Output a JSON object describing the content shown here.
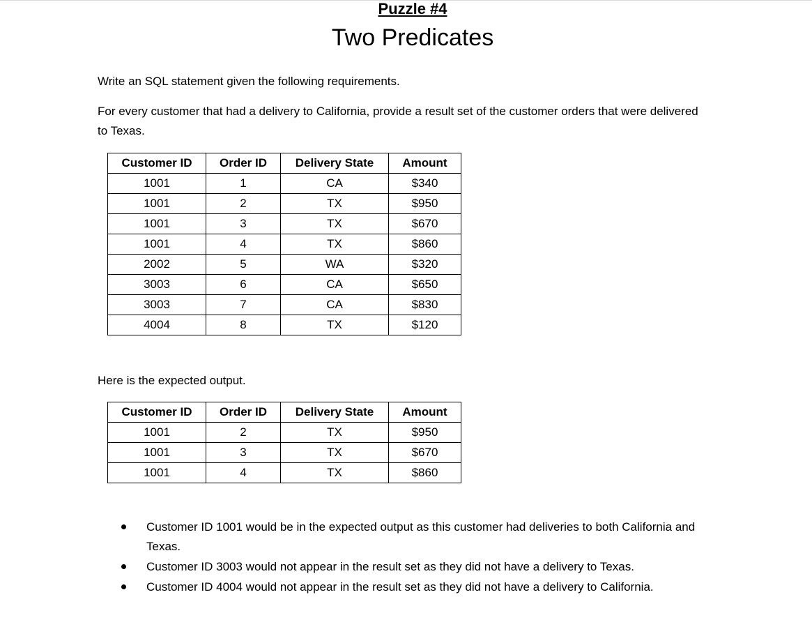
{
  "header": {
    "puzzle_label": "Puzzle #4",
    "title": "Two Predicates"
  },
  "intro": {
    "line1": "Write an SQL statement given the following requirements.",
    "line2": "For every customer that had a delivery to California, provide a result set of the customer orders that were delivered to Texas."
  },
  "source_table": {
    "columns": [
      "Customer ID",
      "Order ID",
      "Delivery State",
      "Amount"
    ],
    "rows": [
      [
        "1001",
        "1",
        "CA",
        "$340"
      ],
      [
        "1001",
        "2",
        "TX",
        "$950"
      ],
      [
        "1001",
        "3",
        "TX",
        "$670"
      ],
      [
        "1001",
        "4",
        "TX",
        "$860"
      ],
      [
        "2002",
        "5",
        "WA",
        "$320"
      ],
      [
        "3003",
        "6",
        "CA",
        "$650"
      ],
      [
        "3003",
        "7",
        "CA",
        "$830"
      ],
      [
        "4004",
        "8",
        "TX",
        "$120"
      ]
    ]
  },
  "expected": {
    "label": "Here is the expected output.",
    "columns": [
      "Customer ID",
      "Order ID",
      "Delivery State",
      "Amount"
    ],
    "rows": [
      [
        "1001",
        "2",
        "TX",
        "$950"
      ],
      [
        "1001",
        "3",
        "TX",
        "$670"
      ],
      [
        "1001",
        "4",
        "TX",
        "$860"
      ]
    ]
  },
  "notes": [
    "Customer ID 1001 would be in the expected output as this customer had deliveries to both California and Texas.",
    "Customer ID 3003 would not appear in the result set as they did not have a delivery to Texas.",
    "Customer ID 4004 would not appear in the result set as they did not have a delivery to California."
  ]
}
